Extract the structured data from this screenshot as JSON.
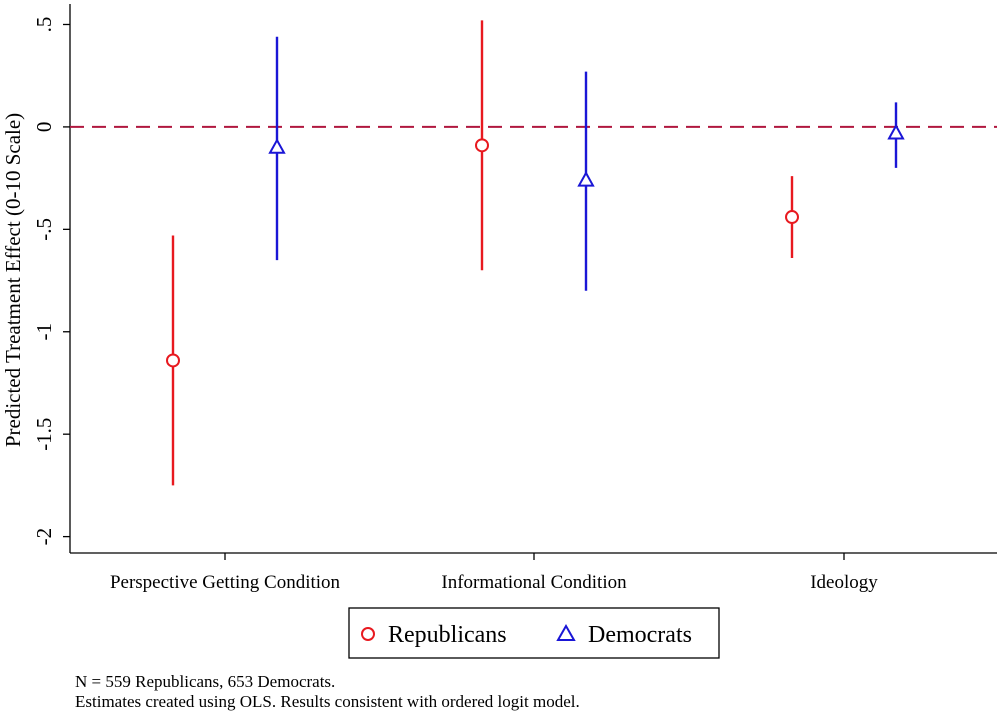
{
  "chart_data": {
    "type": "scatter",
    "subtype": "point-estimate-with-error-bars",
    "ylabel": "Predicted Treatment Effect (0-10 Scale)",
    "ylim": [
      -2.08,
      0.6
    ],
    "yticks": [
      0.5,
      0,
      -0.5,
      -1,
      -1.5,
      -2
    ],
    "ytick_labels": [
      ".5",
      "0",
      "-.5",
      "-1",
      "-1.5",
      "-2"
    ],
    "categories": [
      "Perspective Getting Condition",
      "Informational Condition",
      "Ideology"
    ],
    "reference_line": {
      "y": 0,
      "style": "dashed",
      "color": "#b0173f"
    },
    "grid": false,
    "legend_position": "bottom",
    "series": [
      {
        "name": "Republicans",
        "marker": "circle",
        "color": "#e8191f",
        "points": [
          {
            "category": "Perspective Getting Condition",
            "estimate": -1.14,
            "ci": [
              -1.75,
              -0.53
            ]
          },
          {
            "category": "Informational Condition",
            "estimate": -0.09,
            "ci": [
              -0.7,
              0.52
            ]
          },
          {
            "category": "Ideology",
            "estimate": -0.44,
            "ci": [
              -0.64,
              -0.24
            ]
          }
        ]
      },
      {
        "name": "Democrats",
        "marker": "triangle",
        "color": "#1a16d6",
        "points": [
          {
            "category": "Perspective Getting Condition",
            "estimate": -0.1,
            "ci": [
              -0.65,
              0.44
            ]
          },
          {
            "category": "Informational Condition",
            "estimate": -0.26,
            "ci": [
              -0.8,
              0.27
            ]
          },
          {
            "category": "Ideology",
            "estimate": -0.03,
            "ci": [
              -0.2,
              0.12
            ]
          }
        ]
      }
    ]
  },
  "notes": {
    "line1": "N = 559 Republicans, 653 Democrats.",
    "line2": "Estimates created using OLS. Results consistent with ordered logit model."
  }
}
